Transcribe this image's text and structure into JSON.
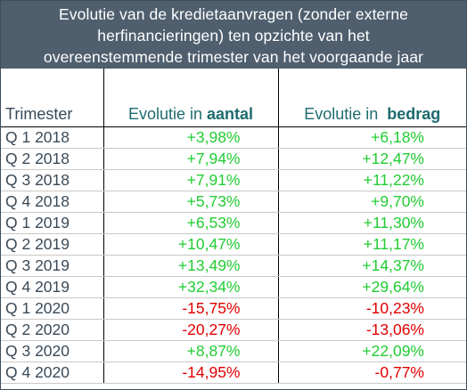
{
  "title_lines": [
    "Evolutie van de kredietaanvragen (zonder externe",
    "herfinancieringen) ten opzichte van het",
    "overeenstemmende trimester van het voorgaande jaar"
  ],
  "headers": {
    "trimester": "Trimester",
    "aantal_prefix": "Evolutie in ",
    "aantal_bold": "aantal",
    "bedrag_prefix": "Evolutie in  ",
    "bedrag_bold": "bedrag"
  },
  "rows": [
    {
      "trimester": "Q 1 2018",
      "aantal": "+3,98%",
      "bedrag": "+6,18%"
    },
    {
      "trimester": "Q 2 2018",
      "aantal": "+7,94%",
      "bedrag": "+12,47%"
    },
    {
      "trimester": "Q 3 2018",
      "aantal": "+7,91%",
      "bedrag": "+11,22%"
    },
    {
      "trimester": "Q 4 2018",
      "aantal": "+5,73%",
      "bedrag": "+9,70%"
    },
    {
      "trimester": "Q 1 2019",
      "aantal": "+6,53%",
      "bedrag": "+11,30%"
    },
    {
      "trimester": "Q 2 2019",
      "aantal": "+10,47%",
      "bedrag": "+11,17%"
    },
    {
      "trimester": "Q 3 2019",
      "aantal": "+13,49%",
      "bedrag": "+14,37%"
    },
    {
      "trimester": "Q 4 2019",
      "aantal": "+32,34%",
      "bedrag": "+29,64%"
    },
    {
      "trimester": "Q 1 2020",
      "aantal": "-15,75%",
      "bedrag": "-10,23%"
    },
    {
      "trimester": "Q 2 2020",
      "aantal": "-20,27%",
      "bedrag": "-13,06%"
    },
    {
      "trimester": "Q 3 2020",
      "aantal": "+8,87%",
      "bedrag": "+22,09%"
    },
    {
      "trimester": "Q 4 2020",
      "aantal": "-14,95%",
      "bedrag": "-0,77%"
    }
  ],
  "colors": {
    "header_bg": "#4f5f6e",
    "positive": "#22cc33",
    "negative": "#e00000",
    "accent_teal": "#1e6b6e"
  }
}
